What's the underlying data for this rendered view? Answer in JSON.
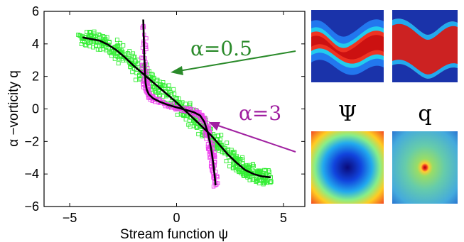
{
  "chart_data": {
    "type": "scatter",
    "xlabel": "Stream function ψ",
    "ylabel": "α −vorticity q",
    "xlim": [
      -6.2,
      6.0
    ],
    "ylim": [
      -6,
      6
    ],
    "xticks": [
      "−5",
      "0",
      "5"
    ],
    "yticks": [
      "6",
      "4",
      "2",
      "0",
      "−2",
      "−4",
      "−6"
    ],
    "xtick_values": [
      -5,
      0,
      5
    ],
    "ytick_values": [
      6,
      4,
      2,
      0,
      -2,
      -4,
      -6
    ],
    "grid": false,
    "colors": {
      "green": "#33ee33",
      "magenta": "#ee44ee",
      "black": "#000000",
      "green_arrow": "#2a8a2a",
      "magenta_arrow": "#a020a0"
    },
    "series": [
      {
        "name": "α=0.5",
        "style": "scatter-squares",
        "color": "#33ee33",
        "x": [
          -4.4,
          -4.0,
          -3.6,
          -3.2,
          -2.8,
          -2.4,
          -2.0,
          -1.6,
          -1.2,
          -0.8,
          -0.4,
          0.0,
          0.4,
          0.8,
          1.2,
          1.6,
          2.0,
          2.4,
          2.8,
          3.2,
          3.6,
          4.0,
          4.4
        ],
        "y": [
          4.4,
          4.3,
          4.2,
          3.95,
          3.6,
          3.15,
          2.65,
          2.2,
          1.75,
          1.3,
          0.85,
          0.4,
          -0.1,
          -0.6,
          -1.1,
          -1.6,
          -2.2,
          -2.8,
          -3.3,
          -3.75,
          -4.0,
          -4.15,
          -4.2
        ],
        "spread": 0.35
      },
      {
        "name": "α=3",
        "style": "scatter-squares",
        "color": "#ee44ee",
        "x": [
          -1.55,
          -1.52,
          -1.48,
          -1.45,
          -1.4,
          -1.3,
          -1.1,
          -0.8,
          -0.4,
          0.0,
          0.4,
          0.8,
          1.1,
          1.3,
          1.45,
          1.55,
          1.65,
          1.72,
          1.78,
          1.82
        ],
        "y": [
          5.1,
          3.5,
          2.3,
          1.6,
          1.2,
          0.9,
          0.65,
          0.45,
          0.25,
          0.1,
          -0.05,
          -0.2,
          -0.4,
          -0.8,
          -1.4,
          -2.0,
          -2.7,
          -3.4,
          -4.1,
          -4.7
        ],
        "spread": 0.12
      },
      {
        "name": "",
        "style": "line",
        "color": "#000000",
        "x": [
          -4.5,
          -3.8,
          -3.2,
          -2.6,
          -2.0,
          -1.65,
          -1.6,
          -1.56,
          -1.53,
          -1.5,
          -1.45,
          -1.4,
          -1.2,
          -0.8,
          -0.3,
          0.3,
          0.9,
          1.3,
          1.45,
          1.55,
          1.65,
          1.75,
          1.82,
          2.2,
          2.8,
          3.4,
          4.0,
          4.4
        ],
        "y": [
          4.3,
          4.28,
          4.0,
          3.4,
          2.6,
          2.1,
          3.2,
          4.3,
          5.2,
          3.0,
          1.5,
          1.1,
          0.75,
          0.45,
          0.2,
          -0.05,
          -0.35,
          -0.8,
          -1.4,
          -2.2,
          -3.0,
          -3.8,
          -4.6,
          -2.5,
          -3.2,
          -3.7,
          -4.0,
          -4.15
        ]
      }
    ],
    "annotations": [
      {
        "text": "α=0.5",
        "color": "#2a8a2a"
      },
      {
        "text": "α=3",
        "color": "#a020a0"
      }
    ],
    "panels": {
      "labels": [
        "Ψ",
        "q"
      ]
    }
  }
}
